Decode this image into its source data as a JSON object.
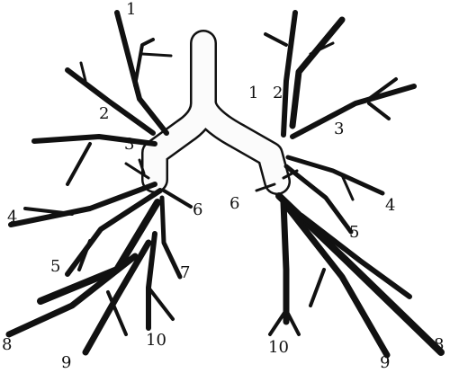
{
  "figure": {
    "ink_color": "#111111",
    "paper_color": "#ffffff",
    "fill_color": "#fbfbfb",
    "labels": {
      "right": [
        "1",
        "2",
        "3",
        "4",
        "5",
        "6",
        "8",
        "9",
        "10"
      ],
      "left": [
        "1",
        "2",
        "3",
        "4",
        "5",
        "6",
        "7",
        "8",
        "9",
        "10"
      ]
    }
  }
}
